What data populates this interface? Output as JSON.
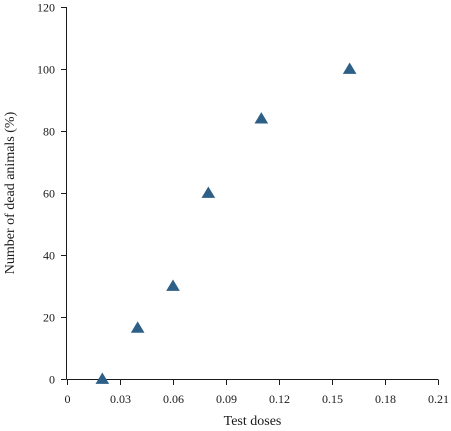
{
  "chart_data": {
    "type": "scatter",
    "xlabel": "Test doses",
    "ylabel": "Number of dead animals (%)",
    "xlim": [
      0,
      0.21
    ],
    "ylim": [
      0,
      120
    ],
    "xticks": [
      0,
      0.03,
      0.06,
      0.09,
      0.12,
      0.15,
      0.18,
      0.21
    ],
    "xtick_labels": [
      "0",
      "0.03",
      "0.06",
      "0.09",
      "0.12",
      "0.15",
      "0.18",
      "0.21"
    ],
    "yticks": [
      0,
      20,
      40,
      60,
      80,
      100,
      120
    ],
    "ytick_labels": [
      "0",
      "20",
      "40",
      "60",
      "80",
      "100",
      "120"
    ],
    "grid": false,
    "marker": "triangle",
    "marker_color": "#2e5f87",
    "series": [
      {
        "x": [
          0.02,
          0.04,
          0.06,
          0.08,
          0.11,
          0.16
        ],
        "y": [
          0,
          16.5,
          30,
          60,
          84,
          100
        ]
      }
    ]
  }
}
